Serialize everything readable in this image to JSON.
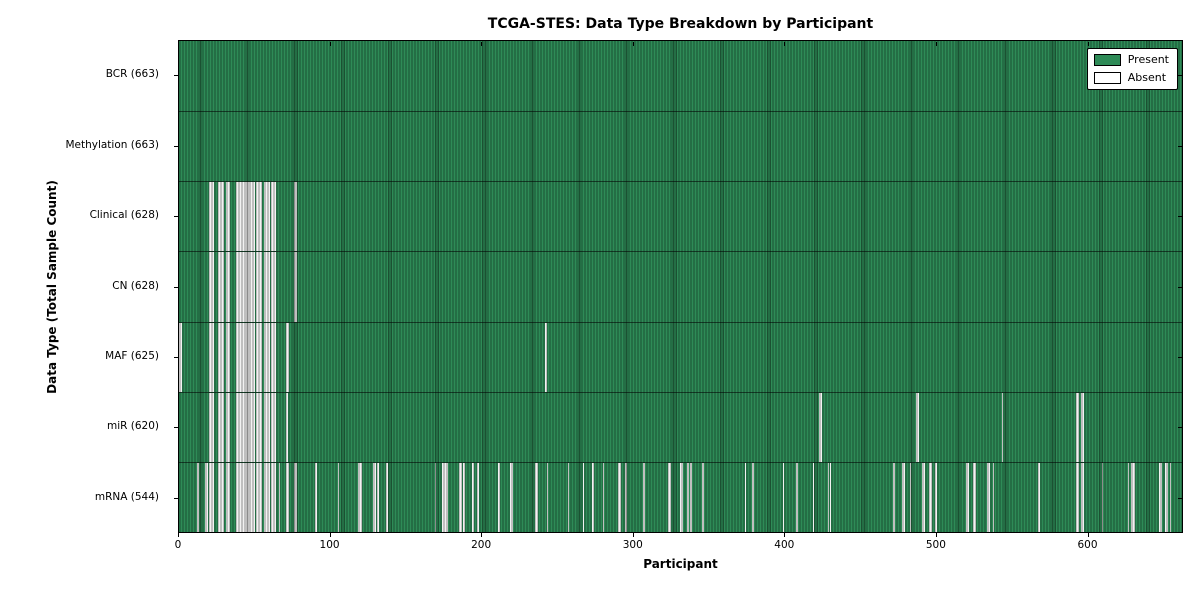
{
  "colors": {
    "present": "#2E8B57",
    "absent": "#FFFFFF",
    "frame": "#000000",
    "background": "#FFFFFF"
  },
  "chart_data": {
    "type": "heatmap",
    "title": "TCGA-STES: Data Type Breakdown by Participant",
    "xlabel": "Participant",
    "ylabel": "Data Type (Total Sample Count)",
    "x_ticks": [
      0,
      100,
      200,
      300,
      400,
      500,
      600
    ],
    "n_participants": 663,
    "grid": false,
    "legend_position": "upper right",
    "legend": {
      "entries": [
        {
          "label": "Present",
          "color": "#2E8B57"
        },
        {
          "label": "Absent",
          "color": "#FFFFFF"
        }
      ]
    },
    "rows": [
      {
        "label": "BCR (663)",
        "data_type": "BCR",
        "present_count": 663,
        "absent_participants": []
      },
      {
        "label": "Methylation (663)",
        "data_type": "Methylation",
        "present_count": 663,
        "absent_participants": []
      },
      {
        "label": "Clinical (628)",
        "data_type": "Clinical",
        "present_count": 628,
        "absent_participants": [
          20,
          21,
          22,
          26,
          27,
          28,
          29,
          31,
          32,
          33,
          38,
          39,
          40,
          41,
          42,
          43,
          44,
          45,
          46,
          47,
          48,
          49,
          51,
          52,
          53,
          54,
          56,
          57,
          58,
          59,
          61,
          62,
          63,
          76,
          77
        ]
      },
      {
        "label": "CN (628)",
        "data_type": "CN",
        "present_count": 628,
        "absent_participants": [
          20,
          21,
          22,
          26,
          27,
          28,
          29,
          31,
          32,
          33,
          38,
          39,
          40,
          41,
          42,
          43,
          44,
          45,
          46,
          47,
          48,
          49,
          51,
          52,
          53,
          54,
          56,
          57,
          58,
          59,
          61,
          62,
          63,
          76,
          77
        ]
      },
      {
        "label": "MAF (625)",
        "data_type": "MAF",
        "present_count": 625,
        "absent_participants": [
          0,
          1,
          20,
          21,
          22,
          26,
          27,
          28,
          29,
          31,
          32,
          33,
          38,
          39,
          40,
          41,
          42,
          43,
          44,
          45,
          46,
          47,
          48,
          49,
          51,
          52,
          53,
          54,
          56,
          57,
          58,
          59,
          61,
          62,
          63,
          71,
          72,
          242
        ]
      },
      {
        "label": "miR (620)",
        "data_type": "miR",
        "present_count": 620,
        "absent_participants": [
          20,
          21,
          22,
          26,
          27,
          28,
          29,
          31,
          32,
          33,
          38,
          39,
          40,
          41,
          42,
          43,
          44,
          45,
          46,
          47,
          48,
          49,
          51,
          52,
          53,
          54,
          56,
          57,
          58,
          59,
          61,
          62,
          63,
          71,
          423,
          424,
          487,
          488,
          544,
          593,
          594,
          596,
          597
        ]
      },
      {
        "label": "mRNA (544)",
        "data_type": "mRNA",
        "present_count": 544,
        "absent_participants": [
          12,
          17,
          18,
          20,
          21,
          22,
          26,
          27,
          28,
          29,
          31,
          32,
          33,
          38,
          39,
          40,
          41,
          42,
          43,
          44,
          45,
          46,
          47,
          48,
          49,
          51,
          52,
          53,
          54,
          56,
          57,
          58,
          59,
          61,
          62,
          63,
          66,
          71,
          72,
          76,
          77,
          90,
          105,
          118,
          119,
          120,
          128,
          129,
          131,
          137,
          169,
          174,
          175,
          176,
          177,
          185,
          186,
          188,
          194,
          197,
          211,
          219,
          220,
          235,
          236,
          243,
          257,
          267,
          273,
          280,
          290,
          291,
          295,
          307,
          323,
          324,
          331,
          332,
          336,
          338,
          346,
          374,
          379,
          399,
          408,
          419,
          429,
          430,
          472,
          478,
          479,
          483,
          491,
          492,
          496,
          497,
          500,
          520,
          521,
          525,
          526,
          534,
          535,
          538,
          568,
          593,
          594,
          596,
          597,
          610,
          627,
          629,
          630,
          631,
          648,
          649,
          652,
          653,
          655
        ]
      }
    ]
  }
}
